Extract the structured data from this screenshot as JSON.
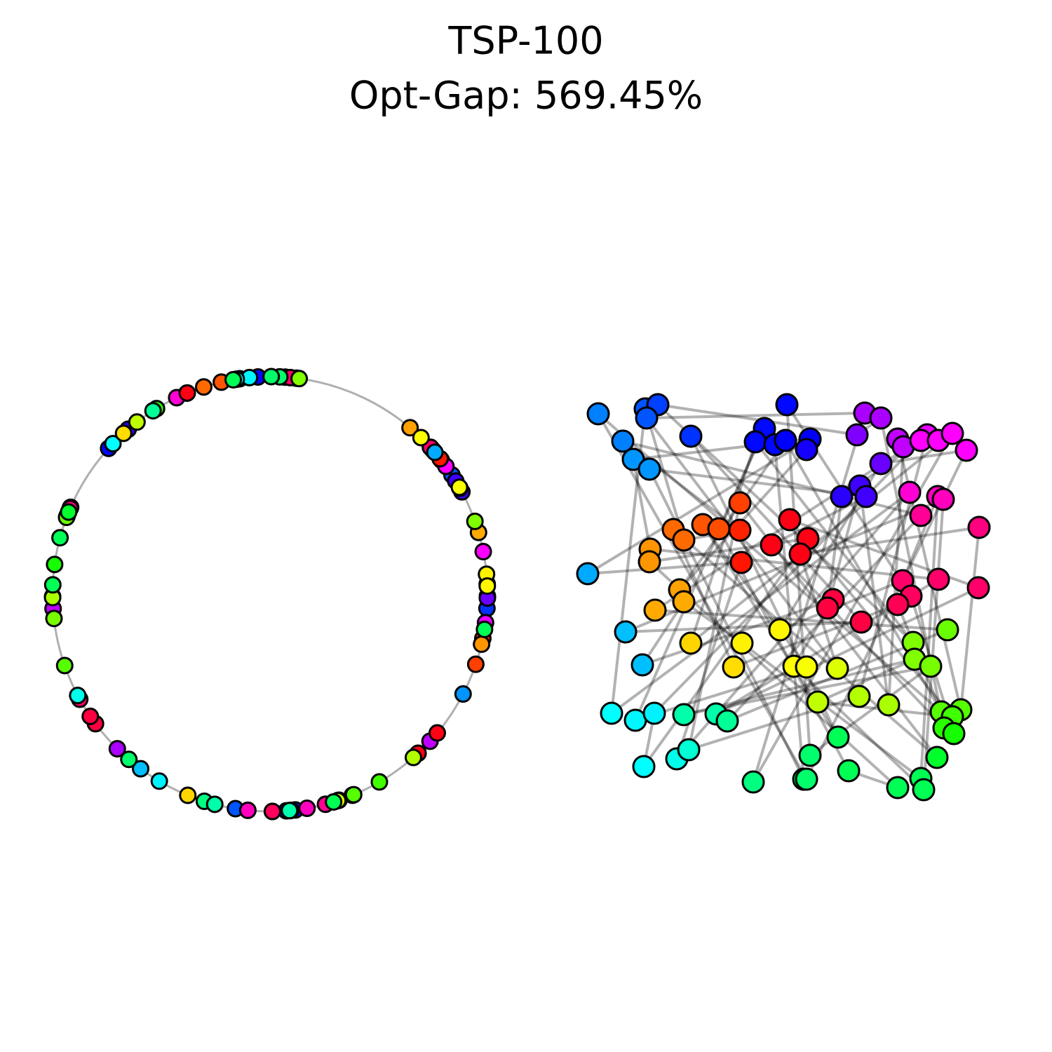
{
  "header": {
    "title": "TSP-100",
    "subtitle": "Opt-Gap: 569.45%"
  }
}
